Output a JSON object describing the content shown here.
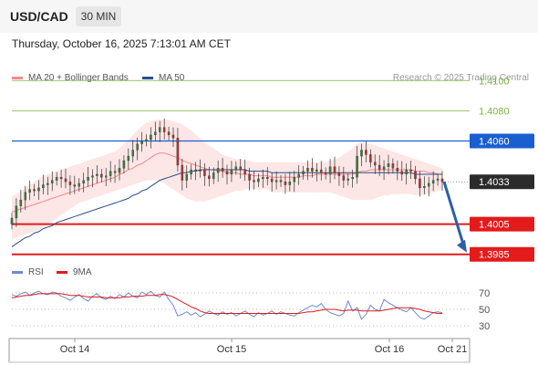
{
  "header": {
    "symbol": "USD/CAD",
    "timeframe": "30 MIN"
  },
  "datetime": "Thursday, October 16, 2025 7:13:01 AM CET",
  "legend": {
    "ma20": "MA 20 + Bollinger Bands",
    "ma50": "MA 50",
    "rsi": "RSI",
    "rsi_ma": "9MA"
  },
  "credit": "Research © 2025 Trading Central",
  "colors": {
    "ma20": "#f08a8a",
    "ma50": "#2b4e8c",
    "bollinger_fill": "#fde3e3",
    "resistance_green": "#7cb342",
    "pivot_blue": "#1a5fd0",
    "support_red": "#e31b1b",
    "current_price_box": "#2b2b2b",
    "rsi_line": "#6b8bd6",
    "rsi_ma_line": "#e31b1b",
    "arrow": "#2b5fa8"
  },
  "chart_data": {
    "type": "candlestick",
    "y_range": [
      1.398,
      1.4105
    ],
    "price_levels": [
      {
        "label": "1.4100",
        "value": 1.41,
        "kind": "resistance"
      },
      {
        "label": "1.4080",
        "value": 1.408,
        "kind": "resistance"
      },
      {
        "label": "1.4060",
        "value": 1.406,
        "kind": "pivot"
      },
      {
        "label": "1.4033",
        "value": 1.4033,
        "kind": "current"
      },
      {
        "label": "1.4005",
        "value": 1.4005,
        "kind": "support"
      },
      {
        "label": "1.3985",
        "value": 1.3985,
        "kind": "support"
      }
    ],
    "x_labels": [
      "Oct 14",
      "Oct 15",
      "Oct 16",
      "Oct 21"
    ],
    "close": [
      1.4009,
      1.4017,
      1.4021,
      1.4026,
      1.4028,
      1.4027,
      1.4029,
      1.4031,
      1.4032,
      1.4034,
      1.4036,
      1.4035,
      1.4033,
      1.4031,
      1.403,
      1.4032,
      1.4034,
      1.4036,
      1.4037,
      1.4038,
      1.4036,
      1.4037,
      1.404,
      1.4039,
      1.4042,
      1.4047,
      1.405,
      1.4054,
      1.4058,
      1.406,
      1.4061,
      1.4064,
      1.4066,
      1.4069,
      1.4066,
      1.4064,
      1.4062,
      1.4044,
      1.4034,
      1.4038,
      1.4041,
      1.404,
      1.4041,
      1.4037,
      1.4035,
      1.4039,
      1.4042,
      1.404,
      1.4038,
      1.4041,
      1.4043,
      1.4041,
      1.4038,
      1.4034,
      1.4033,
      1.4035,
      1.4036,
      1.4035,
      1.4033,
      1.4034,
      1.4033,
      1.4031,
      1.4033,
      1.4036,
      1.4038,
      1.404,
      1.4042,
      1.404,
      1.4041,
      1.4039,
      1.4038,
      1.4043,
      1.4039,
      1.4037,
      1.4034,
      1.4035,
      1.4036,
      1.405,
      1.4054,
      1.4051,
      1.4046,
      1.4044,
      1.4041,
      1.4043,
      1.4045,
      1.4042,
      1.404,
      1.4038,
      1.4041,
      1.404,
      1.4035,
      1.4029,
      1.403,
      1.4032,
      1.4034,
      1.4035,
      1.4033
    ],
    "ma20": [
      1.4013,
      1.4014,
      1.4015,
      1.4016,
      1.4017,
      1.4018,
      1.4019,
      1.402,
      1.4021,
      1.4022,
      1.4023,
      1.4024,
      1.4025,
      1.4026,
      1.4027,
      1.4028,
      1.4029,
      1.403,
      1.4031,
      1.4032,
      1.4033,
      1.4034,
      1.4035,
      1.4036,
      1.4038,
      1.4039,
      1.4041,
      1.4042,
      1.4044,
      1.4045,
      1.4047,
      1.4049,
      1.4051,
      1.4052,
      1.4052,
      1.4051,
      1.405,
      1.4049,
      1.4047,
      1.4046,
      1.4045,
      1.4044,
      1.4043,
      1.4042,
      1.4041,
      1.4041,
      1.404,
      1.404,
      1.4039,
      1.4039,
      1.4039,
      1.4038,
      1.4038,
      1.4038,
      1.4037,
      1.4037,
      1.4037,
      1.4037,
      1.4036,
      1.4036,
      1.4036,
      1.4036,
      1.4036,
      1.4036,
      1.4036,
      1.4037,
      1.4037,
      1.4037,
      1.4038,
      1.4038,
      1.4038,
      1.4038,
      1.4038,
      1.4038,
      1.4038,
      1.4038,
      1.4038,
      1.4039,
      1.404,
      1.404,
      1.4041,
      1.4041,
      1.4041,
      1.4041,
      1.4041,
      1.4041,
      1.4041,
      1.4041,
      1.4041,
      1.4041,
      1.404,
      1.404,
      1.404,
      1.4039,
      1.4039,
      1.4038,
      1.4038
    ],
    "bb_upper": [
      1.4023,
      1.4025,
      1.4027,
      1.4029,
      1.4031,
      1.4033,
      1.4035,
      1.4037,
      1.4038,
      1.4039,
      1.404,
      1.4041,
      1.4042,
      1.4043,
      1.4044,
      1.4045,
      1.4046,
      1.4047,
      1.4048,
      1.4049,
      1.405,
      1.4051,
      1.4052,
      1.4053,
      1.4055,
      1.4058,
      1.4061,
      1.4064,
      1.4067,
      1.407,
      1.4072,
      1.4073,
      1.4074,
      1.4074,
      1.4074,
      1.4074,
      1.4073,
      1.4072,
      1.4071,
      1.4069,
      1.4067,
      1.4064,
      1.4062,
      1.4059,
      1.4057,
      1.4055,
      1.4053,
      1.4051,
      1.405,
      1.4049,
      1.4048,
      1.4048,
      1.4047,
      1.4047,
      1.4046,
      1.4046,
      1.4046,
      1.4046,
      1.4046,
      1.4046,
      1.4046,
      1.4046,
      1.4046,
      1.4046,
      1.4046,
      1.4046,
      1.4046,
      1.4046,
      1.4046,
      1.4046,
      1.4046,
      1.4047,
      1.4048,
      1.4049,
      1.4051,
      1.4053,
      1.4055,
      1.4058,
      1.4059,
      1.4059,
      1.4058,
      1.4057,
      1.4056,
      1.4055,
      1.4054,
      1.4053,
      1.4052,
      1.4051,
      1.405,
      1.4049,
      1.4048,
      1.4047,
      1.4046,
      1.4045,
      1.4044,
      1.4043,
      1.4042
    ],
    "bb_lower": [
      1.3995,
      1.3996,
      1.3997,
      1.3998,
      1.3999,
      1.4,
      1.4001,
      1.4003,
      1.4005,
      1.4007,
      1.4009,
      1.4011,
      1.4013,
      1.4015,
      1.4017,
      1.4019,
      1.402,
      1.4021,
      1.4022,
      1.4023,
      1.4024,
      1.4025,
      1.4026,
      1.4027,
      1.4028,
      1.4029,
      1.403,
      1.4031,
      1.4032,
      1.4033,
      1.4034,
      1.4034,
      1.4034,
      1.4033,
      1.4032,
      1.403,
      1.4028,
      1.4026,
      1.4024,
      1.4022,
      1.4021,
      1.402,
      1.402,
      1.402,
      1.4021,
      1.4022,
      1.4023,
      1.4024,
      1.4025,
      1.4026,
      1.4027,
      1.4027,
      1.4028,
      1.4028,
      1.4028,
      1.4028,
      1.4028,
      1.4028,
      1.4027,
      1.4026,
      1.4026,
      1.4026,
      1.4026,
      1.4026,
      1.4026,
      1.4026,
      1.4026,
      1.4026,
      1.4026,
      1.4026,
      1.4026,
      1.4026,
      1.4025,
      1.4024,
      1.4023,
      1.4022,
      1.4021,
      1.4021,
      1.4021,
      1.4021,
      1.4021,
      1.4022,
      1.4023,
      1.4024,
      1.4024,
      1.4025,
      1.4025,
      1.4025,
      1.4025,
      1.4025,
      1.4024,
      1.4024,
      1.4024,
      1.4025,
      1.4026,
      1.4027,
      1.4028
    ],
    "ma50": [
      1.399,
      1.3992,
      1.3994,
      1.3996,
      1.3997,
      1.3999,
      1.4,
      1.4002,
      1.4003,
      1.4004,
      1.4006,
      1.4007,
      1.4008,
      1.4009,
      1.401,
      1.4011,
      1.4012,
      1.4013,
      1.4014,
      1.4015,
      1.4016,
      1.4017,
      1.4018,
      1.4019,
      1.402,
      1.4021,
      1.4022,
      1.4024,
      1.4025,
      1.4027,
      1.4028,
      1.403,
      1.4032,
      1.4034,
      1.4035,
      1.4036,
      1.4037,
      1.4038,
      1.4039,
      1.4039,
      1.404,
      1.404,
      1.4041,
      1.4041,
      1.4041,
      1.4041,
      1.4041,
      1.4041,
      1.4041,
      1.4041,
      1.4041,
      1.4041,
      1.4041,
      1.404,
      1.404,
      1.404,
      1.404,
      1.404,
      1.4039,
      1.4039,
      1.4039,
      1.4039,
      1.4039,
      1.4039,
      1.4039,
      1.4039,
      1.4039,
      1.4039,
      1.4039,
      1.4039,
      1.4039,
      1.4039,
      1.4039,
      1.4039,
      1.4039,
      1.4039,
      1.4039,
      1.4039,
      1.4039,
      1.4039,
      1.4039,
      1.4039,
      1.4039,
      1.4039,
      1.4039,
      1.4039,
      1.4039,
      1.4039,
      1.4039,
      1.4039,
      1.4038,
      1.4038,
      1.4038,
      1.4038,
      1.4038,
      1.4038,
      1.4038
    ],
    "projection": {
      "from": 1.4033,
      "to": 1.3985
    },
    "rsi": {
      "levels": [
        {
          "label": "70",
          "value": 70
        },
        {
          "label": "50",
          "value": 50
        },
        {
          "label": "30",
          "value": 30
        }
      ],
      "range": [
        20,
        80
      ],
      "rsi": [
        68,
        66,
        69,
        71,
        67,
        70,
        72,
        69,
        68,
        71,
        70,
        66,
        64,
        61,
        65,
        68,
        63,
        60,
        66,
        69,
        64,
        62,
        66,
        63,
        68,
        65,
        70,
        66,
        64,
        71,
        68,
        72,
        67,
        65,
        71,
        62,
        55,
        42,
        44,
        47,
        43,
        46,
        41,
        44,
        48,
        45,
        43,
        47,
        44,
        46,
        42,
        45,
        48,
        44,
        41,
        46,
        43,
        45,
        48,
        44,
        47,
        45,
        43,
        42,
        46,
        49,
        52,
        55,
        53,
        57,
        50,
        46,
        44,
        42,
        45,
        60,
        48,
        52,
        38,
        44,
        55,
        50,
        48,
        62,
        58,
        55,
        52,
        49,
        47,
        52,
        46,
        40,
        38,
        42,
        46,
        47,
        46
      ],
      "ma9": [
        64,
        65,
        66,
        67,
        67,
        68,
        69,
        69,
        69,
        69,
        69,
        69,
        68,
        67,
        67,
        67,
        66,
        65,
        65,
        65,
        65,
        64,
        64,
        64,
        64,
        65,
        65,
        66,
        66,
        66,
        67,
        67,
        67,
        68,
        68,
        67,
        65,
        62,
        59,
        56,
        53,
        51,
        48,
        46,
        45,
        45,
        45,
        45,
        45,
        45,
        45,
        45,
        45,
        45,
        45,
        45,
        45,
        45,
        45,
        45,
        45,
        45,
        45,
        45,
        45,
        46,
        47,
        47,
        48,
        49,
        50,
        50,
        50,
        49,
        48,
        49,
        49,
        49,
        48,
        48,
        48,
        48,
        48,
        49,
        50,
        51,
        52,
        52,
        52,
        52,
        51,
        50,
        48,
        47,
        46,
        45,
        45
      ]
    }
  }
}
